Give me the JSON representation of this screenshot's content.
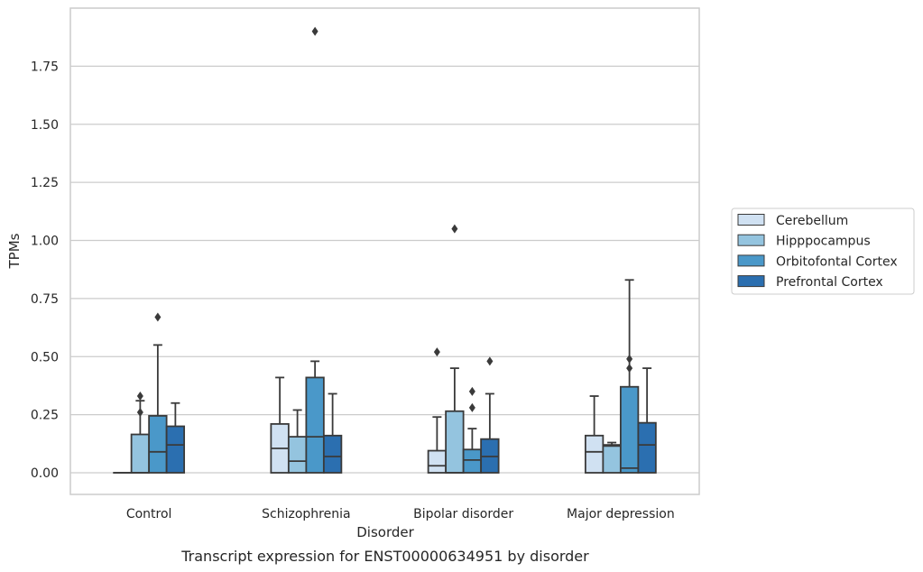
{
  "caption": "Transcript expression for ENST00000634951 by disorder",
  "chart_data": {
    "type": "box",
    "title": "",
    "xlabel": "Disorder",
    "ylabel": "TPMs",
    "ylim": [
      -0.09,
      1.98
    ],
    "yticks": [
      "0.00",
      "0.25",
      "0.50",
      "0.75",
      "1.00",
      "1.25",
      "1.50",
      "1.75"
    ],
    "grid": true,
    "legend_position": "right",
    "categories": [
      "Control",
      "Schizophrenia",
      "Bipolar disorder",
      "Major depression"
    ],
    "series": [
      {
        "name": "Cerebellum",
        "color": "#d0e1f2",
        "boxes": [
          {
            "q1": 0,
            "median": 0,
            "q3": 0,
            "whisker_low": 0,
            "whisker_high": 0,
            "outliers": []
          },
          {
            "q1": 0,
            "median": 0.105,
            "q3": 0.21,
            "whisker_low": 0,
            "whisker_high": 0.41,
            "outliers": []
          },
          {
            "q1": 0,
            "median": 0.03,
            "q3": 0.095,
            "whisker_low": 0,
            "whisker_high": 0.24,
            "outliers": [
              0.52
            ]
          },
          {
            "q1": 0,
            "median": 0.09,
            "q3": 0.16,
            "whisker_low": 0,
            "whisker_high": 0.33,
            "outliers": []
          }
        ]
      },
      {
        "name": "Hipppocampus",
        "color": "#94c4df",
        "boxes": [
          {
            "q1": 0,
            "median": 0,
            "q3": 0.165,
            "whisker_low": 0,
            "whisker_high": 0.31,
            "outliers": [
              0.33,
              0.26
            ]
          },
          {
            "q1": 0,
            "median": 0.05,
            "q3": 0.155,
            "whisker_low": 0,
            "whisker_high": 0.27,
            "outliers": []
          },
          {
            "q1": 0,
            "median": 0,
            "q3": 0.265,
            "whisker_low": 0,
            "whisker_high": 0.45,
            "outliers": [
              1.05
            ]
          },
          {
            "q1": 0,
            "median": 0.115,
            "q3": 0.12,
            "whisker_low": 0,
            "whisker_high": 0.13,
            "outliers": []
          }
        ]
      },
      {
        "name": "Orbitofontal Cortex",
        "color": "#4a98c9",
        "boxes": [
          {
            "q1": 0,
            "median": 0.09,
            "q3": 0.245,
            "whisker_low": 0,
            "whisker_high": 0.55,
            "outliers": [
              0.67
            ]
          },
          {
            "q1": 0,
            "median": 0.155,
            "q3": 0.41,
            "whisker_low": 0,
            "whisker_high": 0.48,
            "outliers": [
              1.9
            ]
          },
          {
            "q1": 0,
            "median": 0.055,
            "q3": 0.1,
            "whisker_low": 0,
            "whisker_high": 0.19,
            "outliers": [
              0.35,
              0.28
            ]
          },
          {
            "q1": 0,
            "median": 0.02,
            "q3": 0.37,
            "whisker_low": 0,
            "whisker_high": 0.83,
            "outliers": [
              0.49,
              0.45
            ]
          }
        ]
      },
      {
        "name": "Prefrontal Cortex",
        "color": "#2b6fb0",
        "boxes": [
          {
            "q1": 0,
            "median": 0.12,
            "q3": 0.2,
            "whisker_low": 0,
            "whisker_high": 0.3,
            "outliers": []
          },
          {
            "q1": 0,
            "median": 0.07,
            "q3": 0.16,
            "whisker_low": 0,
            "whisker_high": 0.34,
            "outliers": []
          },
          {
            "q1": 0,
            "median": 0.07,
            "q3": 0.145,
            "whisker_low": 0,
            "whisker_high": 0.34,
            "outliers": [
              0.48
            ]
          },
          {
            "q1": 0,
            "median": 0.12,
            "q3": 0.215,
            "whisker_low": 0,
            "whisker_high": 0.45,
            "outliers": []
          }
        ]
      }
    ]
  }
}
